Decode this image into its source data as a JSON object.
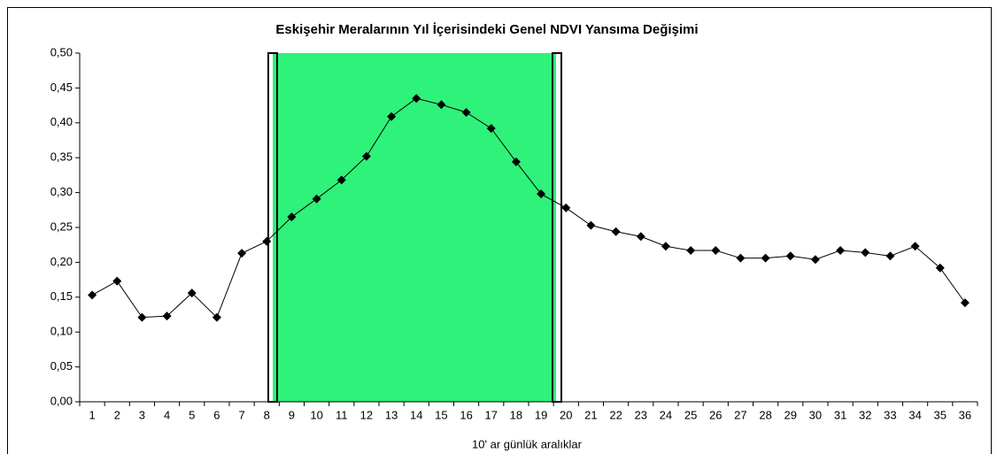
{
  "chart_data": {
    "type": "line",
    "title": "Eskişehir Meralarının Yıl İçerisindeki Genel NDVI Yansıma Değişimi",
    "x_label": "10' ar günlük aralıklar",
    "categories": [
      "1",
      "2",
      "3",
      "4",
      "5",
      "6",
      "7",
      "8",
      "9",
      "10",
      "11",
      "12",
      "13",
      "14",
      "15",
      "16",
      "17",
      "18",
      "19",
      "20",
      "21",
      "22",
      "23",
      "24",
      "25",
      "26",
      "27",
      "28",
      "29",
      "30",
      "31",
      "32",
      "33",
      "34",
      "35",
      "36"
    ],
    "values": [
      0.153,
      0.173,
      0.121,
      0.123,
      0.156,
      0.121,
      0.213,
      0.23,
      0.265,
      0.291,
      0.318,
      0.352,
      0.409,
      0.435,
      0.426,
      0.415,
      0.392,
      0.344,
      0.298,
      0.278,
      0.253,
      0.244,
      0.237,
      0.223,
      0.217,
      0.217,
      0.206,
      0.206,
      0.209,
      0.204,
      0.217,
      0.214,
      0.209,
      0.223,
      0.192,
      0.142
    ],
    "color": "#000000",
    "ylim": [
      0,
      0.5
    ],
    "yticks": [
      {
        "value": 0,
        "label": "0,00"
      },
      {
        "value": 0.05,
        "label": "0,05"
      },
      {
        "value": 0.1,
        "label": "0,10"
      },
      {
        "value": 0.15,
        "label": "0,15"
      },
      {
        "value": 0.2,
        "label": "0,20"
      },
      {
        "value": 0.25,
        "label": "0,25"
      },
      {
        "value": 0.3,
        "label": "0,30"
      },
      {
        "value": 0.35,
        "label": "0,35"
      },
      {
        "value": 0.4,
        "label": "0,40"
      },
      {
        "value": 0.45,
        "label": "0,45"
      },
      {
        "value": 0.5,
        "label": "0,50"
      }
    ],
    "grid": false
  }
}
